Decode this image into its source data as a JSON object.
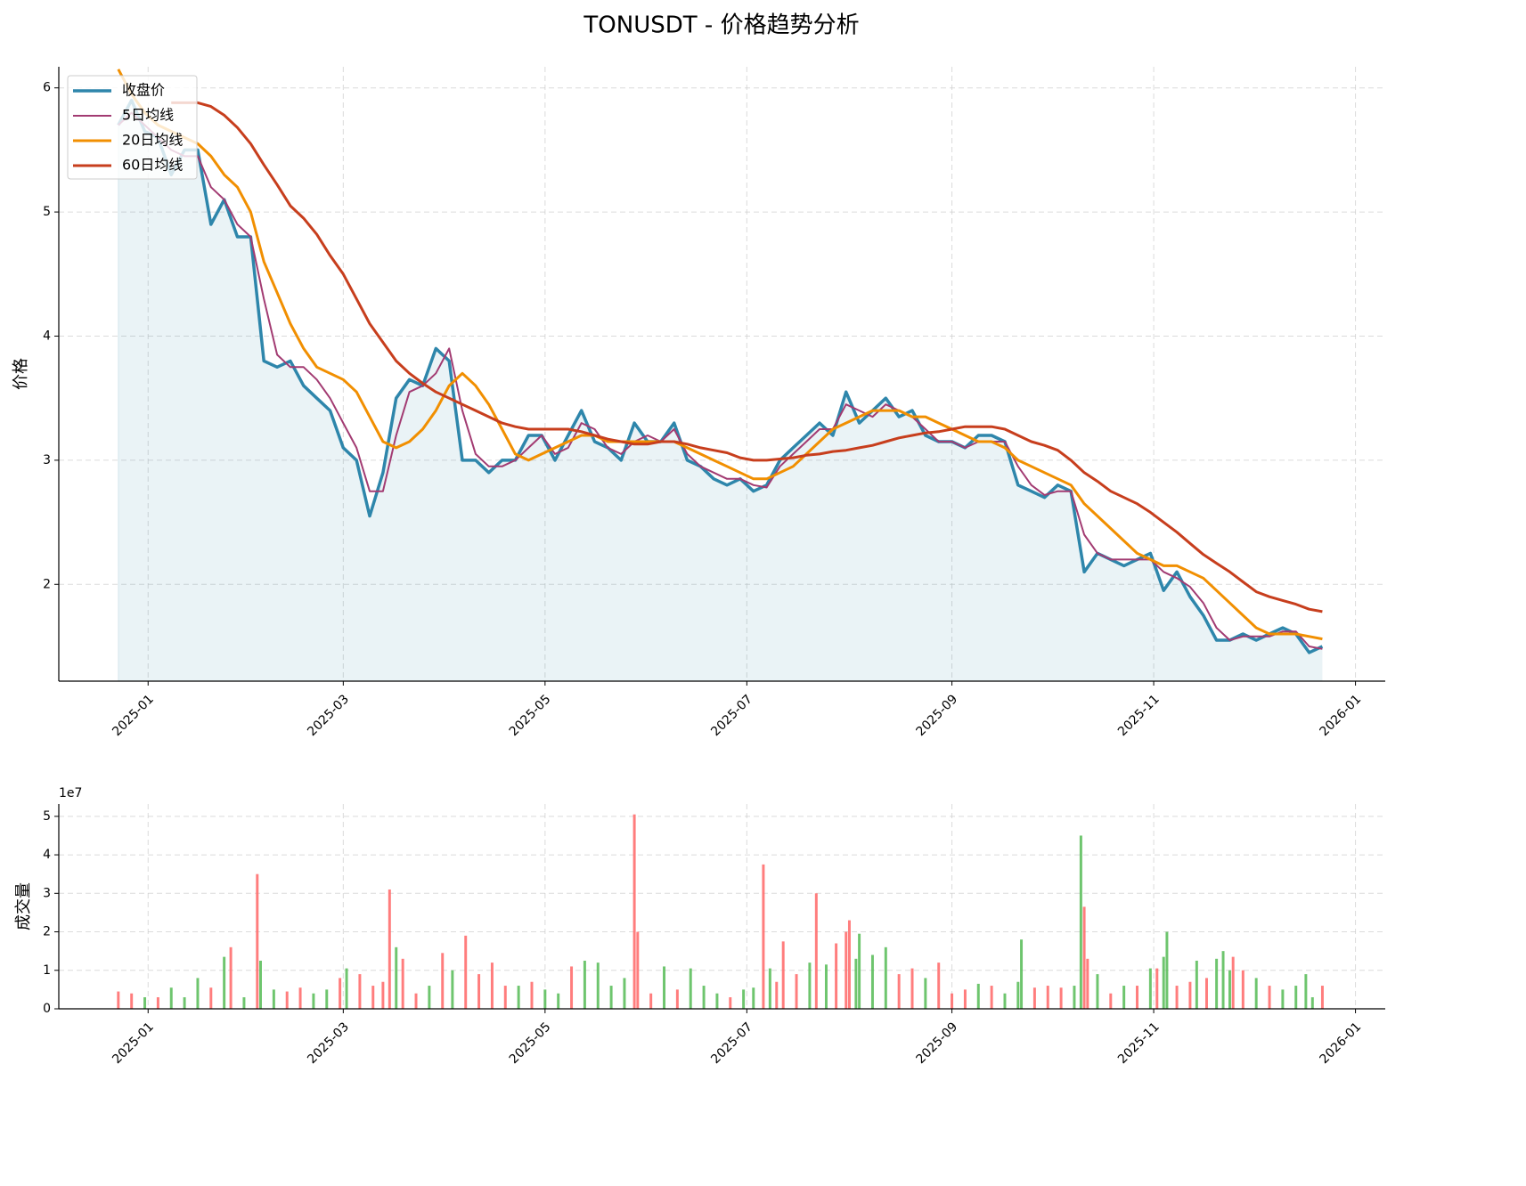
{
  "chart_data": [
    {
      "type": "line",
      "title": "TONUSDT - 价格趋势分析",
      "ylabel": "价格",
      "x": [
        -9,
        -5,
        -1,
        3,
        7,
        11,
        15,
        19,
        23,
        27,
        31,
        35,
        39,
        43,
        47,
        51,
        55,
        59,
        63,
        67,
        71,
        75,
        79,
        83,
        87,
        91,
        95,
        99,
        103,
        107,
        111,
        115,
        119,
        123,
        127,
        131,
        135,
        139,
        143,
        147,
        151,
        155,
        159,
        163,
        167,
        171,
        175,
        179,
        183,
        187,
        191,
        195,
        199,
        203,
        207,
        211,
        215,
        219,
        223,
        227,
        231,
        235,
        239,
        243,
        247,
        251,
        255,
        259,
        263,
        267,
        271,
        275,
        279,
        283,
        287,
        291,
        295,
        299,
        303,
        307,
        311,
        315,
        319,
        323,
        327,
        331,
        335,
        339,
        343,
        347,
        351,
        355
      ],
      "series": [
        {
          "name": "收盘价",
          "color": "#2e86ab",
          "width": 3.5,
          "fill": true,
          "values": [
            5.7,
            5.9,
            5.65,
            5.6,
            5.3,
            5.5,
            5.5,
            4.9,
            5.1,
            4.8,
            4.8,
            3.8,
            3.75,
            3.8,
            3.6,
            3.5,
            3.4,
            3.1,
            3.0,
            2.55,
            2.9,
            3.5,
            3.65,
            3.6,
            3.9,
            3.8,
            3.0,
            3.0,
            2.9,
            3.0,
            3.0,
            3.2,
            3.2,
            3.0,
            3.2,
            3.4,
            3.15,
            3.1,
            3.0,
            3.3,
            3.15,
            3.15,
            3.3,
            3.0,
            2.95,
            2.85,
            2.8,
            2.85,
            2.75,
            2.8,
            3.0,
            3.1,
            3.2,
            3.3,
            3.2,
            3.55,
            3.3,
            3.4,
            3.5,
            3.35,
            3.4,
            3.2,
            3.15,
            3.15,
            3.1,
            3.2,
            3.2,
            3.15,
            2.8,
            2.75,
            2.7,
            2.8,
            2.75,
            2.1,
            2.25,
            2.2,
            2.15,
            2.2,
            2.25,
            1.95,
            2.1,
            1.9,
            1.75,
            1.55,
            1.55,
            1.6,
            1.55,
            1.6,
            1.65,
            1.6,
            1.45,
            1.5
          ]
        },
        {
          "name": "5日均线",
          "color": "#a23b72",
          "width": 2,
          "fill": false,
          "values": [
            5.7,
            5.8,
            5.7,
            5.6,
            5.5,
            5.45,
            5.45,
            5.2,
            5.1,
            4.9,
            4.8,
            4.3,
            3.85,
            3.75,
            3.75,
            3.65,
            3.5,
            3.3,
            3.1,
            2.75,
            2.75,
            3.2,
            3.55,
            3.6,
            3.7,
            3.9,
            3.4,
            3.05,
            2.95,
            2.95,
            3.0,
            3.1,
            3.2,
            3.05,
            3.1,
            3.3,
            3.25,
            3.1,
            3.05,
            3.15,
            3.2,
            3.15,
            3.25,
            3.05,
            2.95,
            2.9,
            2.85,
            2.85,
            2.8,
            2.78,
            2.95,
            3.05,
            3.15,
            3.25,
            3.25,
            3.45,
            3.4,
            3.35,
            3.45,
            3.4,
            3.35,
            3.25,
            3.15,
            3.15,
            3.1,
            3.15,
            3.15,
            3.15,
            2.95,
            2.8,
            2.72,
            2.75,
            2.75,
            2.4,
            2.25,
            2.2,
            2.2,
            2.2,
            2.2,
            2.1,
            2.05,
            1.98,
            1.85,
            1.65,
            1.55,
            1.58,
            1.58,
            1.58,
            1.62,
            1.62,
            1.5,
            1.48
          ]
        },
        {
          "name": "20日均线",
          "color": "#f18f01",
          "width": 3,
          "fill": false,
          "values": [
            6.15,
            5.95,
            5.8,
            5.7,
            5.65,
            5.6,
            5.55,
            5.45,
            5.3,
            5.2,
            5.0,
            4.6,
            4.35,
            4.1,
            3.9,
            3.75,
            3.7,
            3.65,
            3.55,
            3.35,
            3.15,
            3.1,
            3.15,
            3.25,
            3.4,
            3.6,
            3.7,
            3.6,
            3.45,
            3.25,
            3.05,
            3.0,
            3.05,
            3.1,
            3.15,
            3.2,
            3.2,
            3.15,
            3.15,
            3.15,
            3.15,
            3.15,
            3.15,
            3.1,
            3.05,
            3.0,
            2.95,
            2.9,
            2.85,
            2.85,
            2.9,
            2.95,
            3.05,
            3.15,
            3.25,
            3.3,
            3.35,
            3.4,
            3.4,
            3.4,
            3.35,
            3.35,
            3.3,
            3.25,
            3.2,
            3.15,
            3.15,
            3.1,
            3.0,
            2.95,
            2.9,
            2.85,
            2.8,
            2.65,
            2.55,
            2.45,
            2.35,
            2.25,
            2.2,
            2.15,
            2.15,
            2.1,
            2.05,
            1.95,
            1.85,
            1.75,
            1.65,
            1.6,
            1.6,
            1.6,
            1.58,
            1.56
          ]
        },
        {
          "name": "60日均线",
          "color": "#c73e1d",
          "width": 3,
          "fill": false,
          "values": [
            null,
            null,
            null,
            null,
            5.88,
            5.88,
            5.88,
            5.85,
            5.78,
            5.68,
            5.55,
            5.38,
            5.22,
            5.05,
            4.95,
            4.82,
            4.65,
            4.5,
            4.3,
            4.1,
            3.95,
            3.8,
            3.7,
            3.62,
            3.55,
            3.5,
            3.45,
            3.4,
            3.35,
            3.3,
            3.27,
            3.25,
            3.25,
            3.25,
            3.25,
            3.23,
            3.2,
            3.17,
            3.15,
            3.13,
            3.13,
            3.15,
            3.15,
            3.13,
            3.1,
            3.08,
            3.06,
            3.02,
            3.0,
            3.0,
            3.01,
            3.02,
            3.04,
            3.05,
            3.07,
            3.08,
            3.1,
            3.12,
            3.15,
            3.18,
            3.2,
            3.22,
            3.23,
            3.25,
            3.27,
            3.27,
            3.27,
            3.25,
            3.2,
            3.15,
            3.12,
            3.08,
            3.0,
            2.9,
            2.83,
            2.75,
            2.7,
            2.65,
            2.58,
            2.5,
            2.42,
            2.33,
            2.24,
            2.17,
            2.1,
            2.02,
            1.94,
            1.9,
            1.87,
            1.84,
            1.8,
            1.78
          ]
        }
      ],
      "xlim": [
        -27,
        374
      ],
      "ylim": [
        1.22,
        6.17
      ],
      "xticks": [
        {
          "value": 0,
          "label": "2025-01"
        },
        {
          "value": 59,
          "label": "2025-03"
        },
        {
          "value": 120,
          "label": "2025-05"
        },
        {
          "value": 181,
          "label": "2025-07"
        },
        {
          "value": 243,
          "label": "2025-09"
        },
        {
          "value": 304,
          "label": "2025-11"
        },
        {
          "value": 365,
          "label": "2026-01"
        }
      ],
      "yticks": [
        2,
        3,
        4,
        5,
        6
      ],
      "grid": true,
      "legend": "upper left"
    },
    {
      "type": "bar",
      "ylabel": "成交量",
      "offset_text": "1e7",
      "x": [
        -9,
        -5,
        -1,
        3,
        7,
        11,
        15,
        19,
        23,
        25,
        29,
        33,
        34,
        38,
        42,
        46,
        50,
        54,
        58,
        60,
        64,
        68,
        71,
        73,
        75,
        77,
        81,
        85,
        89,
        92,
        96,
        100,
        104,
        108,
        112,
        116,
        120,
        124,
        128,
        132,
        136,
        140,
        144,
        147,
        148,
        152,
        156,
        160,
        164,
        168,
        172,
        176,
        180,
        183,
        186,
        188,
        190,
        192,
        196,
        200,
        202,
        205,
        208,
        211,
        212,
        214,
        215,
        219,
        223,
        227,
        231,
        235,
        239,
        243,
        247,
        251,
        255,
        259,
        263,
        264,
        268,
        272,
        276,
        280,
        282,
        283,
        284,
        287,
        291,
        295,
        299,
        303,
        305,
        307,
        308,
        311,
        315,
        317,
        320,
        323,
        325,
        327,
        328,
        331,
        335,
        339,
        343,
        347,
        350,
        352,
        355
      ],
      "values": [
        0.45,
        0.4,
        0.3,
        0.3,
        0.55,
        0.3,
        0.8,
        0.55,
        1.35,
        1.6,
        0.3,
        3.5,
        1.25,
        0.5,
        0.45,
        0.55,
        0.4,
        0.5,
        0.8,
        1.05,
        0.9,
        0.6,
        0.7,
        3.1,
        1.6,
        1.3,
        0.4,
        0.6,
        1.45,
        1.0,
        1.9,
        0.9,
        1.2,
        0.6,
        0.6,
        0.7,
        0.5,
        0.4,
        1.1,
        1.25,
        1.2,
        0.6,
        0.8,
        5.05,
        2.0,
        0.4,
        1.1,
        0.5,
        1.05,
        0.6,
        0.4,
        0.3,
        0.5,
        0.55,
        3.75,
        1.05,
        0.7,
        1.75,
        0.9,
        1.2,
        3.0,
        1.15,
        1.7,
        2.0,
        2.3,
        1.3,
        1.95,
        1.4,
        1.6,
        0.9,
        1.05,
        0.8,
        1.2,
        0.4,
        0.5,
        0.65,
        0.6,
        0.4,
        0.7,
        1.8,
        0.55,
        0.6,
        0.55,
        0.6,
        4.5,
        2.65,
        1.3,
        0.9,
        0.4,
        0.6,
        0.6,
        1.05,
        1.05,
        1.35,
        2.0,
        0.6,
        0.7,
        1.25,
        0.8,
        1.3,
        1.5,
        1.0,
        1.35,
        1.0,
        0.8,
        0.6,
        0.5,
        0.6,
        0.9,
        0.3,
        0.6
      ],
      "colors": [
        "#f66",
        "#f66",
        "#5b5",
        "#f66",
        "#5b5",
        "#5b5",
        "#5b5",
        "#f66",
        "#5b5",
        "#f66",
        "#5b5",
        "#f66",
        "#5b5",
        "#5b5",
        "#f66",
        "#f66",
        "#5b5",
        "#5b5",
        "#f66",
        "#5b5",
        "#f66",
        "#f66",
        "#f66",
        "#f66",
        "#5b5",
        "#f66",
        "#f66",
        "#5b5",
        "#f66",
        "#5b5",
        "#f66",
        "#f66",
        "#f66",
        "#f66",
        "#5b5",
        "#f66",
        "#5b5",
        "#5b5",
        "#f66",
        "#5b5",
        "#5b5",
        "#5b5",
        "#5b5",
        "#f66",
        "#f66",
        "#f66",
        "#5b5",
        "#f66",
        "#5b5",
        "#5b5",
        "#5b5",
        "#f66",
        "#5b5",
        "#5b5",
        "#f66",
        "#5b5",
        "#f66",
        "#f66",
        "#f66",
        "#5b5",
        "#f66",
        "#5b5",
        "#f66",
        "#f66",
        "#f66",
        "#5b5",
        "#5b5",
        "#5b5",
        "#5b5",
        "#f66",
        "#f66",
        "#5b5",
        "#f66",
        "#f66",
        "#f66",
        "#5b5",
        "#f66",
        "#5b5",
        "#5b5",
        "#5b5",
        "#f66",
        "#f66",
        "#f66",
        "#5b5",
        "#5b5",
        "#f66",
        "#f66",
        "#5b5",
        "#f66",
        "#5b5",
        "#f66",
        "#5b5",
        "#f66",
        "#5b5",
        "#5b5",
        "#f66",
        "#f66",
        "#5b5",
        "#f66",
        "#5b5",
        "#5b5",
        "#5b5",
        "#f66",
        "#f66",
        "#5b5",
        "#f66",
        "#5b5",
        "#5b5",
        "#5b5",
        "#5b5",
        "#f66"
      ],
      "xlim": [
        -27,
        374
      ],
      "ylim": [
        0,
        5.32
      ],
      "xticks": [
        {
          "value": 0,
          "label": "2025-01"
        },
        {
          "value": 59,
          "label": "2025-03"
        },
        {
          "value": 120,
          "label": "2025-05"
        },
        {
          "value": 181,
          "label": "2025-07"
        },
        {
          "value": 243,
          "label": "2025-09"
        },
        {
          "value": 304,
          "label": "2025-11"
        },
        {
          "value": 365,
          "label": "2026-01"
        }
      ],
      "yticks": [
        0,
        1,
        2,
        3,
        4,
        5
      ],
      "grid": true
    }
  ]
}
